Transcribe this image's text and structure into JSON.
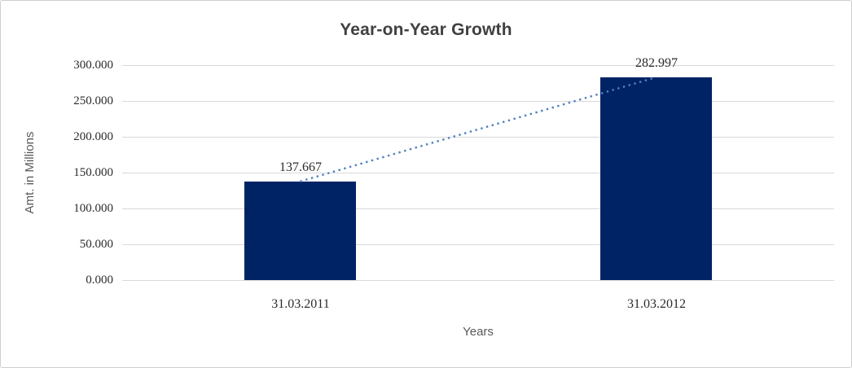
{
  "frame": {
    "background": "#ffffff",
    "border_color": "#cfcfcf"
  },
  "chart_data": {
    "type": "bar",
    "title": "Year-on-Year Growth",
    "xlabel": "Years",
    "ylabel": "Amt. in Millions",
    "categories": [
      "31.03.2011",
      "31.03.2012"
    ],
    "series": [
      {
        "name": "Amt. in Millions",
        "values": [
          137.667,
          282.997
        ]
      }
    ],
    "data_labels": [
      "137.667",
      "282.997"
    ],
    "ylim": [
      0,
      300
    ],
    "ytick_step": 50,
    "ytick_labels": [
      "0.000",
      "50.000",
      "100.000",
      "150.000",
      "200.000",
      "250.000",
      "300.000"
    ],
    "grid": "horizontal-only",
    "legend": "none",
    "colors": {
      "bar": "#002366",
      "trendline": "#4f81bd",
      "gridline": "#d9d9d9",
      "title_text": "#404040",
      "axis_title_text": "#595959",
      "tick_text": "#2b2b2b"
    },
    "trendline": {
      "style": "dotted",
      "from_value": 137.667,
      "to_value": 282.997
    }
  }
}
